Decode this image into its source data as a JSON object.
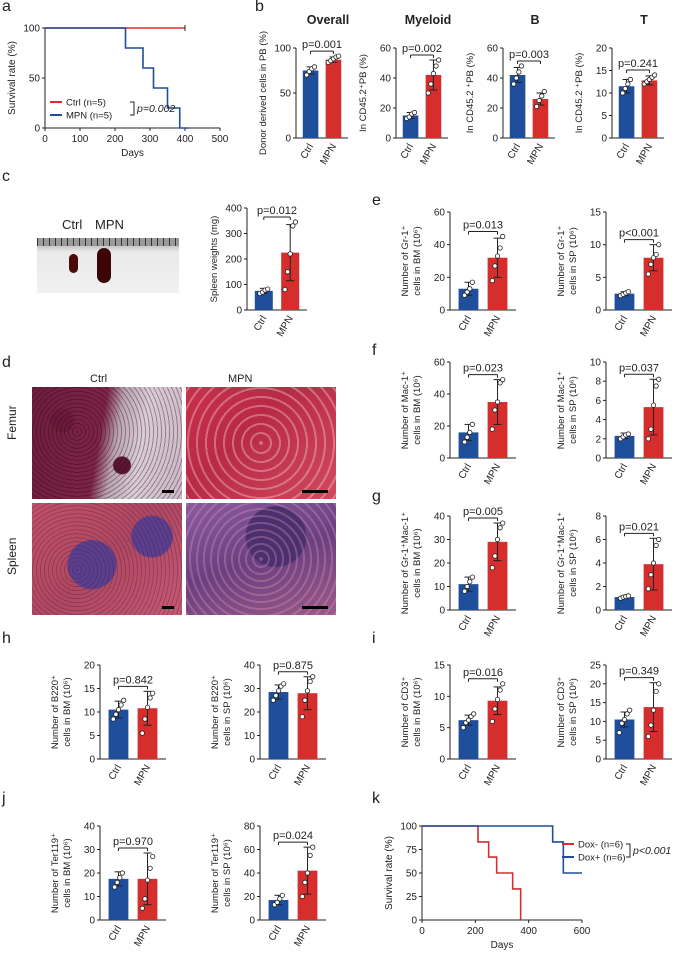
{
  "colors": {
    "ctrl": "#1f4e9b",
    "mpn": "#d62d2d",
    "axis": "#222222"
  },
  "panel_letters": [
    "a",
    "b",
    "c",
    "d",
    "e",
    "f",
    "g",
    "h",
    "i",
    "j",
    "k"
  ],
  "photo_c": {
    "ctrl_label": "Ctrl",
    "mpn_label": "MPN"
  },
  "photo_d": {
    "col_ctrl": "Ctrl",
    "col_mpn": "MPN",
    "row_femur": "Femur",
    "row_spleen": "Spleen"
  },
  "chart_data": [
    {
      "id": "a",
      "type": "line",
      "ylabel": "Survival rate (%)",
      "xlabel": "Days",
      "xlim": [
        0,
        500
      ],
      "ylim": [
        0,
        100
      ],
      "xticks": [
        0,
        100,
        200,
        300,
        400,
        500
      ],
      "yticks": [
        0,
        50,
        100
      ],
      "series": [
        {
          "name": "Ctrl (n=5)",
          "color": "mpn",
          "x": [
            0,
            400
          ],
          "y": [
            100,
            100
          ]
        },
        {
          "name": "MPN (n=5)",
          "color": "ctrl",
          "x": [
            0,
            230,
            230,
            280,
            280,
            310,
            310,
            350,
            350,
            385,
            385,
            410
          ],
          "y": [
            100,
            100,
            80,
            80,
            60,
            60,
            40,
            40,
            20,
            20,
            0,
            0
          ]
        }
      ],
      "pvalue": "p=0.002"
    },
    {
      "id": "b1",
      "type": "bar",
      "title": "Overall",
      "ylabel": "Donor derived cells in PB (%)",
      "ylim": [
        0,
        100
      ],
      "yticks": [
        0,
        50,
        100
      ],
      "categories": [
        "Ctrl",
        "MPN"
      ],
      "values": [
        75,
        87
      ],
      "sd": [
        4,
        3
      ],
      "points": [
        [
          70,
          74,
          77,
          79
        ],
        [
          84,
          86,
          88,
          90,
          91
        ]
      ],
      "pvalue": "p=0.001"
    },
    {
      "id": "b2",
      "type": "bar",
      "title": "Myeloid",
      "ylabel": "In CD45.2⁺PB (%)",
      "ylim": [
        0,
        60
      ],
      "yticks": [
        0,
        20,
        40,
        60
      ],
      "categories": [
        "Ctrl",
        "MPN"
      ],
      "values": [
        15,
        42
      ],
      "sd": [
        2,
        10
      ],
      "points": [
        [
          13,
          14,
          16,
          17
        ],
        [
          30,
          36,
          43,
          48,
          52
        ]
      ],
      "pvalue": "p=0.002"
    },
    {
      "id": "b3",
      "type": "bar",
      "title": "B",
      "ylabel": "In CD45.2 ⁺PB (%)",
      "ylim": [
        0,
        60
      ],
      "yticks": [
        0,
        20,
        40,
        60
      ],
      "categories": [
        "Ctrl",
        "MPN"
      ],
      "values": [
        42,
        26
      ],
      "sd": [
        5,
        4
      ],
      "points": [
        [
          36,
          40,
          44,
          48
        ],
        [
          21,
          25,
          28,
          31
        ]
      ],
      "pvalue": "p=0.003"
    },
    {
      "id": "b4",
      "type": "bar",
      "title": "T",
      "ylabel": "In CD45.2 ⁺PB (%)",
      "ylim": [
        0,
        20
      ],
      "yticks": [
        0,
        5,
        10,
        15,
        20
      ],
      "categories": [
        "Ctrl",
        "MPN"
      ],
      "values": [
        11.5,
        12.8
      ],
      "sd": [
        1.5,
        1
      ],
      "points": [
        [
          10,
          11,
          12,
          13
        ],
        [
          12,
          12.5,
          13,
          13.5,
          14
        ]
      ],
      "pvalue": "p=0.241"
    },
    {
      "id": "c",
      "type": "bar",
      "ylabel": "Spleen weights (mg)",
      "ylim": [
        0,
        400
      ],
      "yticks": [
        0,
        100,
        200,
        300,
        400
      ],
      "categories": [
        "Ctrl",
        "MPN"
      ],
      "values": [
        75,
        225
      ],
      "sd": [
        10,
        110
      ],
      "points": [
        [
          65,
          70,
          78,
          82
        ],
        [
          80,
          150,
          220,
          330,
          345
        ]
      ],
      "pvalue": "p=0.012"
    },
    {
      "id": "e1",
      "type": "bar",
      "ylabel": [
        "Number of Gr-1⁺",
        "cells in BM (10⁶)"
      ],
      "ylim": [
        0,
        60
      ],
      "yticks": [
        0,
        20,
        40,
        60
      ],
      "categories": [
        "Ctrl",
        "MPN"
      ],
      "values": [
        13,
        32
      ],
      "sd": [
        4,
        12
      ],
      "points": [
        [
          9,
          11,
          13,
          17
        ],
        [
          18,
          27,
          33,
          38,
          45
        ]
      ],
      "pvalue": "p=0.013"
    },
    {
      "id": "e2",
      "type": "bar",
      "ylabel": [
        "Number of Gr-1⁺",
        "cells in SP (10⁶)"
      ],
      "ylim": [
        0,
        15
      ],
      "yticks": [
        0,
        5,
        10,
        15
      ],
      "categories": [
        "Ctrl",
        "MPN"
      ],
      "values": [
        2.5,
        8
      ],
      "sd": [
        0.3,
        2
      ],
      "points": [
        [
          2.2,
          2.4,
          2.6,
          2.8
        ],
        [
          5.5,
          7,
          8,
          8.5,
          10
        ]
      ],
      "pvalue": "p<0.001"
    },
    {
      "id": "f1",
      "type": "bar",
      "ylabel": [
        "Number of Mac-1⁺",
        "cells in BM (10⁶)"
      ],
      "ylim": [
        0,
        60
      ],
      "yticks": [
        0,
        20,
        40,
        60
      ],
      "categories": [
        "Ctrl",
        "MPN"
      ],
      "values": [
        16,
        35
      ],
      "sd": [
        5,
        14
      ],
      "points": [
        [
          10,
          13,
          16,
          21
        ],
        [
          18,
          30,
          35,
          47,
          49
        ]
      ],
      "pvalue": "p=0.023"
    },
    {
      "id": "f2",
      "type": "bar",
      "ylabel": [
        "Number of Mac-1⁺",
        "cells in SP (10⁶)"
      ],
      "ylim": [
        0,
        10
      ],
      "yticks": [
        0,
        2,
        4,
        6,
        8,
        10
      ],
      "categories": [
        "Ctrl",
        "MPN"
      ],
      "values": [
        2.3,
        5.3
      ],
      "sd": [
        0.3,
        2.9
      ],
      "points": [
        [
          2.0,
          2.2,
          2.4,
          2.5
        ],
        [
          2,
          3,
          5.5,
          7.5,
          8.2
        ]
      ],
      "pvalue": "p=0.037"
    },
    {
      "id": "g1",
      "type": "bar",
      "ylabel": [
        "Number of Gr-1⁺Mac-1⁺",
        "cells in BM (10⁶)"
      ],
      "ylim": [
        0,
        40
      ],
      "yticks": [
        0,
        10,
        20,
        30,
        40
      ],
      "categories": [
        "Ctrl",
        "MPN"
      ],
      "values": [
        11,
        29
      ],
      "sd": [
        3,
        8
      ],
      "points": [
        [
          8,
          10,
          12,
          14
        ],
        [
          18,
          23,
          30,
          35,
          37
        ]
      ],
      "pvalue": "p=0.005"
    },
    {
      "id": "g2",
      "type": "bar",
      "ylabel": [
        "Number of Gr-1⁺Mac-1⁺",
        "cells in SP (10⁶)"
      ],
      "ylim": [
        0,
        8
      ],
      "yticks": [
        0,
        2,
        4,
        6,
        8
      ],
      "categories": [
        "Ctrl",
        "MPN"
      ],
      "values": [
        1.1,
        3.9
      ],
      "sd": [
        0.1,
        2.2
      ],
      "points": [
        [
          1.0,
          1.1,
          1.15,
          1.2
        ],
        [
          1.8,
          3.0,
          4.0,
          5.5,
          6.0
        ]
      ],
      "pvalue": "p=0.021"
    },
    {
      "id": "h1",
      "type": "bar",
      "ylabel": [
        "Number of B220⁺",
        "cells in BM (10⁶)"
      ],
      "ylim": [
        0,
        20
      ],
      "yticks": [
        0,
        5,
        10,
        15,
        20
      ],
      "categories": [
        "Ctrl",
        "MPN"
      ],
      "values": [
        10.5,
        10.8
      ],
      "sd": [
        1.8,
        3.6
      ],
      "points": [
        [
          8.5,
          9.5,
          10.5,
          11.5,
          12.5
        ],
        [
          5.5,
          8.5,
          11,
          13,
          14
        ]
      ],
      "pvalue": "p=0.842"
    },
    {
      "id": "h2",
      "type": "bar",
      "ylabel": [
        "Number of B220⁺",
        "cells in SP (10⁶)"
      ],
      "ylim": [
        0,
        40
      ],
      "yticks": [
        0,
        10,
        20,
        30,
        40
      ],
      "categories": [
        "Ctrl",
        "MPN"
      ],
      "values": [
        28.5,
        28
      ],
      "sd": [
        3,
        7
      ],
      "points": [
        [
          25,
          27,
          29,
          31,
          32
        ],
        [
          18,
          25,
          29,
          33,
          35
        ]
      ],
      "pvalue": "p=0.875"
    },
    {
      "id": "i1",
      "type": "bar",
      "ylabel": [
        "Number of CD3⁺",
        "cells in BM (10⁶)"
      ],
      "ylim": [
        0,
        15
      ],
      "yticks": [
        0,
        5,
        10,
        15
      ],
      "categories": [
        "Ctrl",
        "MPN"
      ],
      "values": [
        6.2,
        9.3
      ],
      "sd": [
        0.8,
        2.2
      ],
      "points": [
        [
          5,
          5.8,
          6.2,
          6.8,
          7.2
        ],
        [
          6,
          8,
          9.5,
          11,
          12
        ]
      ],
      "pvalue": "p=0.016"
    },
    {
      "id": "i2",
      "type": "bar",
      "ylabel": [
        "Number of CD3⁺",
        "cells in SP (10⁶)"
      ],
      "ylim": [
        0,
        25
      ],
      "yticks": [
        0,
        5,
        10,
        15,
        20,
        25
      ],
      "categories": [
        "Ctrl",
        "MPN"
      ],
      "values": [
        10.5,
        13.8
      ],
      "sd": [
        2,
        6.5
      ],
      "points": [
        [
          7,
          9.5,
          10.5,
          12,
          13
        ],
        [
          6,
          9,
          13,
          18,
          20
        ]
      ],
      "pvalue": "p=0.349"
    },
    {
      "id": "j1",
      "type": "bar",
      "ylabel": [
        "Number of Ter119⁺",
        "cells in BM (10⁶)"
      ],
      "ylim": [
        0,
        40
      ],
      "yticks": [
        0,
        10,
        20,
        30,
        40
      ],
      "categories": [
        "Ctrl",
        "MPN"
      ],
      "values": [
        17.5,
        17.5
      ],
      "sd": [
        3,
        11
      ],
      "points": [
        [
          14,
          16,
          18,
          20
        ],
        [
          5,
          9,
          17,
          22,
          27
        ]
      ],
      "pvalue": "p=0.970"
    },
    {
      "id": "j2",
      "type": "bar",
      "ylabel": [
        "Number of Ter119⁺",
        "cells in SP (10⁶)"
      ],
      "ylim": [
        0,
        80
      ],
      "yticks": [
        0,
        20,
        40,
        60,
        80
      ],
      "categories": [
        "Ctrl",
        "MPN"
      ],
      "values": [
        17,
        42
      ],
      "sd": [
        4,
        20
      ],
      "points": [
        [
          13,
          15,
          18,
          21
        ],
        [
          20,
          32,
          40,
          55,
          62
        ]
      ],
      "pvalue": "p=0.024"
    },
    {
      "id": "k",
      "type": "line",
      "ylabel": "Survival rate (%)",
      "xlabel": "Days",
      "xlim": [
        0,
        600
      ],
      "ylim": [
        0,
        100
      ],
      "xticks": [
        0,
        200,
        400,
        600
      ],
      "yticks": [
        0,
        25,
        50,
        75,
        100
      ],
      "series": [
        {
          "name": "Dox-  (n=6)",
          "color": "mpn",
          "x": [
            0,
            210,
            210,
            250,
            250,
            280,
            280,
            340,
            340,
            370,
            370
          ],
          "y": [
            100,
            100,
            83,
            83,
            67,
            67,
            50,
            50,
            33,
            33,
            0
          ]
        },
        {
          "name": "Dox+ (n=6)",
          "color": "ctrl",
          "x": [
            0,
            490,
            490,
            530,
            530,
            600
          ],
          "y": [
            100,
            100,
            83,
            83,
            50,
            50
          ]
        }
      ],
      "pvalue": "p<0.001"
    }
  ]
}
